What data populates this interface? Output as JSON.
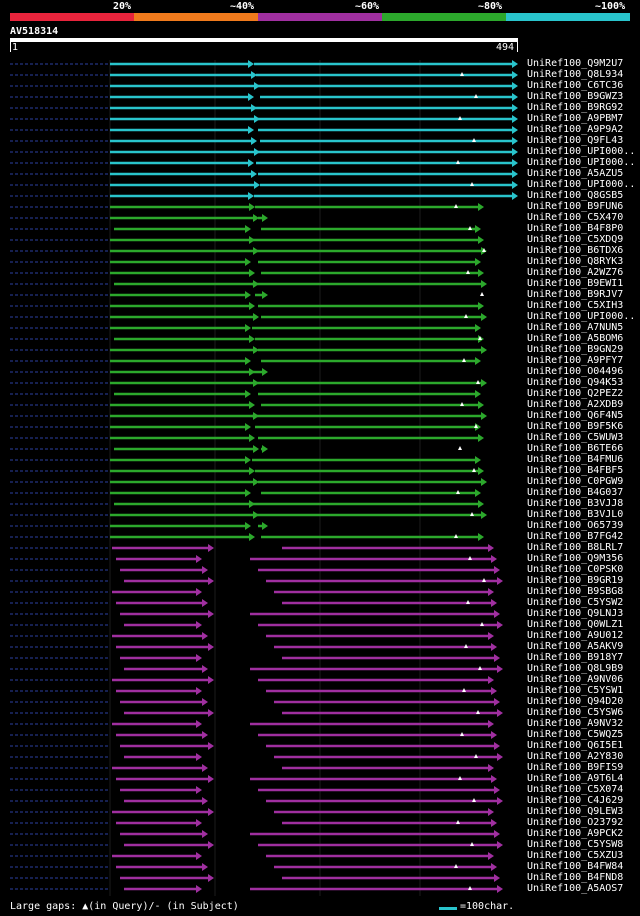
{
  "legend": {
    "segments": [
      {
        "label": "20%",
        "color": "#e8243c"
      },
      {
        "label": "~40%",
        "color": "#f07a1c"
      },
      {
        "label": "~60%",
        "color": "#a02fa0"
      },
      {
        "label": "~80%",
        "color": "#2ca82c"
      },
      {
        "label": "~100%",
        "color": "#29c4cc"
      }
    ]
  },
  "query": {
    "id": "AV518314",
    "start": "1",
    "end": "494"
  },
  "footer": {
    "large_gaps": "Large gaps: ▲(in Query)/- (in Subject)",
    "scale_label": "=100char."
  },
  "hits": [
    {
      "name": "UniRef100_Q9M2U7",
      "color": "cyan"
    },
    {
      "name": "UniRef100_Q8L934",
      "color": "cyan"
    },
    {
      "name": "UniRef100_C6TC36",
      "color": "cyan"
    },
    {
      "name": "UniRef100_B9GWZ3",
      "color": "cyan"
    },
    {
      "name": "UniRef100_B9RG92",
      "color": "cyan"
    },
    {
      "name": "UniRef100_A9PBM7",
      "color": "cyan"
    },
    {
      "name": "UniRef100_A9P9A2",
      "color": "cyan"
    },
    {
      "name": "UniRef100_Q9FL43",
      "color": "cyan"
    },
    {
      "name": "UniRef100_UPI000..",
      "color": "cyan"
    },
    {
      "name": "UniRef100_UPI000..",
      "color": "cyan"
    },
    {
      "name": "UniRef100_A5AZU5",
      "color": "cyan"
    },
    {
      "name": "UniRef100_UPI000..",
      "color": "cyan"
    },
    {
      "name": "UniRef100_Q8GSB5",
      "color": "cyan"
    },
    {
      "name": "UniRef100_B9FUN6",
      "color": "green"
    },
    {
      "name": "UniRef100_C5X470",
      "color": "green"
    },
    {
      "name": "UniRef100_B4F8P0",
      "color": "green"
    },
    {
      "name": "UniRef100_C5XDQ9",
      "color": "green"
    },
    {
      "name": "UniRef100_B6TDX6",
      "color": "green"
    },
    {
      "name": "UniRef100_Q8RYK3",
      "color": "green"
    },
    {
      "name": "UniRef100_A2WZ76",
      "color": "green"
    },
    {
      "name": "UniRef100_B9EWI1",
      "color": "green"
    },
    {
      "name": "UniRef100_B9RJV7",
      "color": "green"
    },
    {
      "name": "UniRef100_C5XIH3",
      "color": "green"
    },
    {
      "name": "UniRef100_UPI000..",
      "color": "green"
    },
    {
      "name": "UniRef100_A7NUN5",
      "color": "green"
    },
    {
      "name": "UniRef100_A5BOM6",
      "color": "green"
    },
    {
      "name": "UniRef100_B9GN29",
      "color": "green"
    },
    {
      "name": "UniRef100_A9PFY7",
      "color": "green"
    },
    {
      "name": "UniRef100_O04496",
      "color": "green"
    },
    {
      "name": "UniRef100_Q94K53",
      "color": "green"
    },
    {
      "name": "UniRef100_Q2PEZ2",
      "color": "green"
    },
    {
      "name": "UniRef100_A2XDB9",
      "color": "green"
    },
    {
      "name": "UniRef100_Q6F4N5",
      "color": "green"
    },
    {
      "name": "UniRef100_B9F5K6",
      "color": "green"
    },
    {
      "name": "UniRef100_C5WUW3",
      "color": "green"
    },
    {
      "name": "UniRef100_B6TE66",
      "color": "green"
    },
    {
      "name": "UniRef100_B4FMU6",
      "color": "green"
    },
    {
      "name": "UniRef100_B4FBF5",
      "color": "green"
    },
    {
      "name": "UniRef100_C0PGW9",
      "color": "green"
    },
    {
      "name": "UniRef100_B4G037",
      "color": "green"
    },
    {
      "name": "UniRef100_B3VJJ8",
      "color": "green"
    },
    {
      "name": "UniRef100_B3VJL0",
      "color": "green"
    },
    {
      "name": "UniRef100_O65739",
      "color": "green"
    },
    {
      "name": "UniRef100_B7FG42",
      "color": "green"
    },
    {
      "name": "UniRef100_B8LRL7",
      "color": "purple"
    },
    {
      "name": "UniRef100_Q9M356",
      "color": "purple"
    },
    {
      "name": "UniRef100_C0PSK0",
      "color": "purple"
    },
    {
      "name": "UniRef100_B9GR19",
      "color": "purple"
    },
    {
      "name": "UniRef100_B9SBG8",
      "color": "purple"
    },
    {
      "name": "UniRef100_C5YSW2",
      "color": "purple"
    },
    {
      "name": "UniRef100_Q9LNJ3",
      "color": "purple"
    },
    {
      "name": "UniRef100_Q0WLZ1",
      "color": "purple"
    },
    {
      "name": "UniRef100_A9U012",
      "color": "purple"
    },
    {
      "name": "UniRef100_A5AKV9",
      "color": "purple"
    },
    {
      "name": "UniRef100_B918Y7",
      "color": "purple"
    },
    {
      "name": "UniRef100_Q8L9B9",
      "color": "purple"
    },
    {
      "name": "UniRef100_A9NV06",
      "color": "purple"
    },
    {
      "name": "UniRef100_C5YSW1",
      "color": "purple"
    },
    {
      "name": "UniRef100_Q94D20",
      "color": "purple"
    },
    {
      "name": "UniRef100_C5YSW6",
      "color": "purple"
    },
    {
      "name": "UniRef100_A9NV32",
      "color": "purple"
    },
    {
      "name": "UniRef100_C5WQZ5",
      "color": "purple"
    },
    {
      "name": "UniRef100_Q6I5E1",
      "color": "purple"
    },
    {
      "name": "UniRef100_A2Y830",
      "color": "purple"
    },
    {
      "name": "UniRef100_B9FIS9",
      "color": "purple"
    },
    {
      "name": "UniRef100_A9T6L4",
      "color": "purple"
    },
    {
      "name": "UniRef100_C5X074",
      "color": "purple"
    },
    {
      "name": "UniRef100_C4J629",
      "color": "purple"
    },
    {
      "name": "UniRef100_Q9LEW3",
      "color": "purple"
    },
    {
      "name": "UniRef100_O23792",
      "color": "purple"
    },
    {
      "name": "UniRef100_A9PCK2",
      "color": "purple"
    },
    {
      "name": "UniRef100_C5YSW8",
      "color": "purple"
    },
    {
      "name": "UniRef100_C5XZU3",
      "color": "purple"
    },
    {
      "name": "UniRef100_B4FW84",
      "color": "purple"
    },
    {
      "name": "UniRef100_B4FND8",
      "color": "purple"
    },
    {
      "name": "UniRef100_A5AOS7",
      "color": "purple"
    }
  ]
}
